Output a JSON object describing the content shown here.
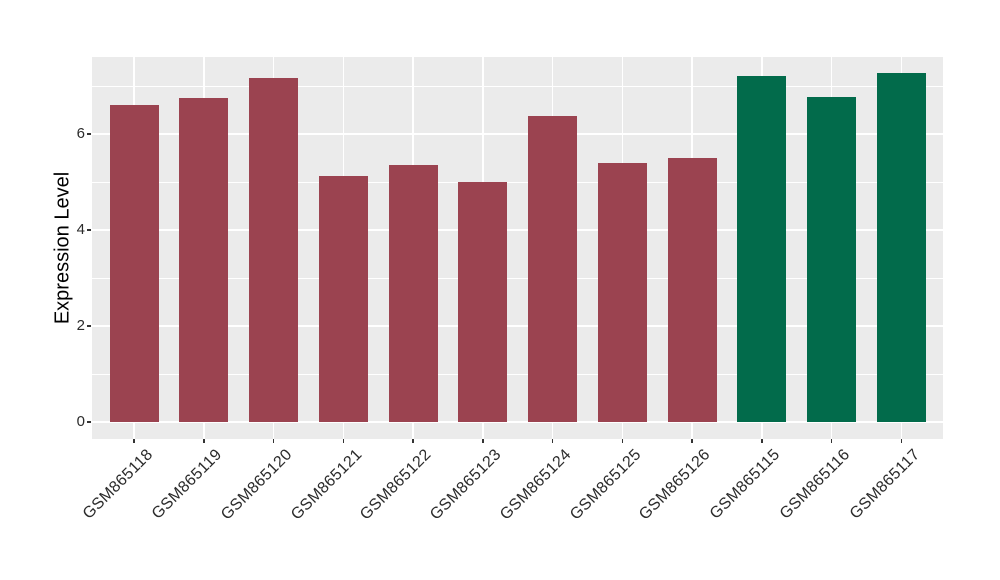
{
  "chart_data": {
    "type": "bar",
    "title": "",
    "xlabel": "",
    "ylabel": "Expression Level",
    "categories": [
      "GSM865118",
      "GSM865119",
      "GSM865120",
      "GSM865121",
      "GSM865122",
      "GSM865123",
      "GSM865124",
      "GSM865125",
      "GSM865126",
      "GSM865115",
      "GSM865116",
      "GSM865117"
    ],
    "values": [
      6.6,
      6.76,
      7.17,
      5.13,
      5.35,
      5.0,
      6.38,
      5.4,
      5.51,
      7.2,
      6.78,
      7.27
    ],
    "bar_colors": [
      "#9B4350",
      "#9B4350",
      "#9B4350",
      "#9B4350",
      "#9B4350",
      "#9B4350",
      "#9B4350",
      "#9B4350",
      "#9B4350",
      "#026B4B",
      "#026B4B",
      "#026B4B"
    ],
    "group_colors": {
      "maroon_group": "#9B4350",
      "green_group": "#026B4B"
    },
    "yticks": [
      0,
      2,
      4,
      6
    ],
    "ytick_labels": [
      "0",
      "2",
      "4",
      "6"
    ],
    "y_minor_gridlines": [
      1,
      3,
      5,
      7
    ],
    "ylim": [
      -0.38,
      7.6
    ],
    "grid": "on",
    "legend_position": "none",
    "panel_bg": "#EBEBEB",
    "grid_color": "#FFFFFF",
    "tick_mark_color": "#333333",
    "axis_text_color": "#2b2b2b",
    "axis_title_color": "#000000"
  }
}
